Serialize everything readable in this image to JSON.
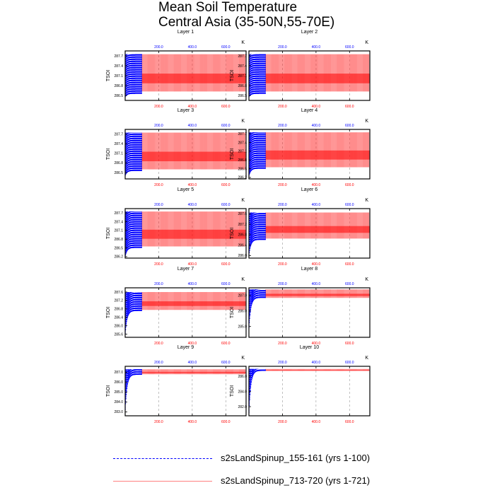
{
  "title": {
    "line1": "Mean Soil Temperature",
    "line2": "Central Asia (35-50N,55-70E)"
  },
  "units_label": "K",
  "colors": {
    "run1": "#0000ff",
    "run2": "#ff0000",
    "grid": "#999999",
    "frame": "#000000"
  },
  "legend": [
    {
      "label": "s2sLandSpinup_155-161 (yrs 1-100)",
      "color": "#0000ff",
      "dash": "dashed"
    },
    {
      "label": "s2sLandSpinup_713-720 (yrs 1-721)",
      "color": "#ff0000",
      "dash": "solid"
    }
  ],
  "chart_data": [
    {
      "type": "line",
      "title": "Layer 1",
      "ylabel": "TSOI",
      "xlim": [
        0,
        721
      ],
      "ylim": [
        286.35,
        287.85
      ],
      "yticks": [
        "286.5",
        "286.8",
        "287.1",
        "287.4",
        "287.7"
      ],
      "x_bottom_ticks": [
        "200.0",
        "400.0",
        "600.0"
      ],
      "x_top_ticks": [
        "200.0",
        "400.0",
        "600.0"
      ],
      "series": [
        {
          "name": "s2sLandSpinup_155-161 (yrs 1-100)",
          "x_range": [
            1,
            100
          ],
          "low": 286.55,
          "high": 287.75,
          "low_start": 286.45
        },
        {
          "name": "s2sLandSpinup_713-720 (yrs 1-721)",
          "x_range": [
            1,
            721
          ],
          "low": 286.62,
          "high": 287.75
        }
      ]
    },
    {
      "type": "line",
      "title": "Layer 2",
      "ylabel": "TSOI",
      "xlim": [
        0,
        721
      ],
      "ylim": [
        286.35,
        287.85
      ],
      "yticks": [
        "286.5",
        "286.8",
        "287.1",
        "287.4",
        "287.7"
      ],
      "x_bottom_ticks": [
        "200.0",
        "400.0",
        "600.0"
      ],
      "x_top_ticks": [
        "200.0",
        "400.0",
        "600.0"
      ],
      "series": [
        {
          "name": "s2sLandSpinup_155-161 (yrs 1-100)",
          "x_range": [
            1,
            100
          ],
          "low": 286.55,
          "high": 287.75,
          "low_start": 286.45
        },
        {
          "name": "s2sLandSpinup_713-720 (yrs 1-721)",
          "x_range": [
            1,
            721
          ],
          "low": 286.62,
          "high": 287.75
        }
      ]
    },
    {
      "type": "line",
      "title": "Layer 3",
      "ylabel": "TSOI",
      "xlim": [
        0,
        721
      ],
      "ylim": [
        286.3,
        287.85
      ],
      "yticks": [
        "286.5",
        "286.8",
        "287.1",
        "287.4",
        "287.7"
      ],
      "x_bottom_ticks": [
        "200.0",
        "400.0",
        "600.0"
      ],
      "x_top_ticks": [
        "200.0",
        "400.0",
        "600.0"
      ],
      "series": [
        {
          "name": "s2sLandSpinup_155-161 (yrs 1-100)",
          "x_range": [
            1,
            100
          ],
          "low": 286.55,
          "high": 287.75,
          "low_start": 286.4
        },
        {
          "name": "s2sLandSpinup_713-720 (yrs 1-721)",
          "x_range": [
            1,
            721
          ],
          "low": 286.6,
          "high": 287.75
        }
      ]
    },
    {
      "type": "line",
      "title": "Layer 4",
      "ylabel": "TSOI",
      "xlim": [
        0,
        721
      ],
      "ylim": [
        286.15,
        287.85
      ],
      "yticks": [
        "286.2",
        "286.5",
        "286.8",
        "287.1",
        "287.4",
        "287.7"
      ],
      "x_bottom_ticks": [
        "200.0",
        "400.0",
        "600.0"
      ],
      "x_top_ticks": [
        "200.0",
        "400.0",
        "600.0"
      ],
      "series": [
        {
          "name": "s2sLandSpinup_155-161 (yrs 1-100)",
          "x_range": [
            1,
            100
          ],
          "low": 286.5,
          "high": 287.75,
          "low_start": 286.25
        },
        {
          "name": "s2sLandSpinup_713-720 (yrs 1-721)",
          "x_range": [
            1,
            721
          ],
          "low": 286.55,
          "high": 287.75
        }
      ]
    },
    {
      "type": "line",
      "title": "Layer 5",
      "ylabel": "TSOI",
      "xlim": [
        0,
        721
      ],
      "ylim": [
        286.15,
        287.85
      ],
      "yticks": [
        "286.2",
        "286.5",
        "286.8",
        "287.1",
        "287.4",
        "287.7"
      ],
      "x_bottom_ticks": [
        "200.0",
        "400.0",
        "600.0"
      ],
      "x_top_ticks": [
        "200.0",
        "400.0",
        "600.0"
      ],
      "series": [
        {
          "name": "s2sLandSpinup_155-161 (yrs 1-100)",
          "x_range": [
            1,
            100
          ],
          "low": 286.5,
          "high": 287.75,
          "low_start": 286.2
        },
        {
          "name": "s2sLandSpinup_713-720 (yrs 1-721)",
          "x_range": [
            1,
            721
          ],
          "low": 286.55,
          "high": 287.75
        }
      ]
    },
    {
      "type": "line",
      "title": "Layer 6",
      "ylabel": "TSOI",
      "xlim": [
        0,
        721
      ],
      "ylim": [
        285.9,
        287.8
      ],
      "yticks": [
        "286.0",
        "286.4",
        "286.8",
        "287.2",
        "287.6"
      ],
      "x_bottom_ticks": [
        "200.0",
        "400.0",
        "600.0"
      ],
      "x_top_ticks": [
        "200.0",
        "400.0",
        "600.0"
      ],
      "series": [
        {
          "name": "s2sLandSpinup_155-161 (yrs 1-100)",
          "x_range": [
            1,
            100
          ],
          "low": 286.6,
          "high": 287.65,
          "low_start": 286.0
        },
        {
          "name": "s2sLandSpinup_713-720 (yrs 1-721)",
          "x_range": [
            1,
            721
          ],
          "low": 286.65,
          "high": 287.65
        }
      ]
    },
    {
      "type": "line",
      "title": "Layer 7",
      "ylabel": "TSOI",
      "xlim": [
        0,
        721
      ],
      "ylim": [
        285.45,
        287.8
      ],
      "yticks": [
        "285.6",
        "286.0",
        "286.4",
        "286.8",
        "287.2",
        "287.6"
      ],
      "x_bottom_ticks": [
        "200.0",
        "400.0",
        "600.0"
      ],
      "x_top_ticks": [
        "200.0",
        "400.0",
        "600.0"
      ],
      "series": [
        {
          "name": "s2sLandSpinup_155-161 (yrs 1-100)",
          "x_range": [
            1,
            100
          ],
          "low": 286.7,
          "high": 287.6,
          "low_start": 285.6
        },
        {
          "name": "s2sLandSpinup_713-720 (yrs 1-721)",
          "x_range": [
            1,
            721
          ],
          "low": 286.75,
          "high": 287.6
        }
      ]
    },
    {
      "type": "line",
      "title": "Layer 8",
      "ylabel": "TSOI",
      "xlim": [
        0,
        721
      ],
      "ylim": [
        284.3,
        287.5
      ],
      "yticks": [
        "285.0",
        "286.0",
        "287.0"
      ],
      "x_bottom_ticks": [
        "200.0",
        "400.0",
        "600.0"
      ],
      "x_top_ticks": [
        "200.0",
        "400.0",
        "600.0"
      ],
      "series": [
        {
          "name": "s2sLandSpinup_155-161 (yrs 1-100)",
          "x_range": [
            1,
            100
          ],
          "low": 286.85,
          "high": 287.4,
          "low_start": 284.9
        },
        {
          "name": "s2sLandSpinup_713-720 (yrs 1-721)",
          "x_range": [
            1,
            721
          ],
          "low": 286.85,
          "high": 287.4
        }
      ]
    },
    {
      "type": "line",
      "title": "Layer 9",
      "ylabel": "TSOI",
      "xlim": [
        0,
        721
      ],
      "ylim": [
        282.6,
        287.6
      ],
      "yticks": [
        "283.0",
        "284.0",
        "285.0",
        "286.0",
        "287.0"
      ],
      "x_bottom_ticks": [
        "200.0",
        "400.0",
        "600.0"
      ],
      "x_top_ticks": [
        "200.0",
        "400.0",
        "600.0"
      ],
      "series": [
        {
          "name": "s2sLandSpinup_155-161 (yrs 1-100)",
          "x_range": [
            1,
            100
          ],
          "low": 286.75,
          "high": 287.3,
          "low_start": 283.2
        },
        {
          "name": "s2sLandSpinup_713-720 (yrs 1-721)",
          "x_range": [
            1,
            721
          ],
          "low": 286.8,
          "high": 287.3
        }
      ]
    },
    {
      "type": "line",
      "title": "Layer 10",
      "ylabel": "TSOI",
      "xlim": [
        0,
        721
      ],
      "ylim": [
        280.8,
        287.3
      ],
      "yticks": [
        "282.0",
        "284.0",
        "286.0"
      ],
      "x_bottom_ticks": [
        "200.0",
        "400.0",
        "600.0"
      ],
      "x_top_ticks": [
        "200.0",
        "400.0",
        "600.0"
      ],
      "series": [
        {
          "name": "s2sLandSpinup_155-161 (yrs 1-100)",
          "x_range": [
            1,
            100
          ],
          "low": 286.7,
          "high": 286.95,
          "low_start": 281.2
        },
        {
          "name": "s2sLandSpinup_713-720 (yrs 1-721)",
          "x_range": [
            1,
            721
          ],
          "low": 286.7,
          "high": 286.95
        }
      ]
    }
  ]
}
